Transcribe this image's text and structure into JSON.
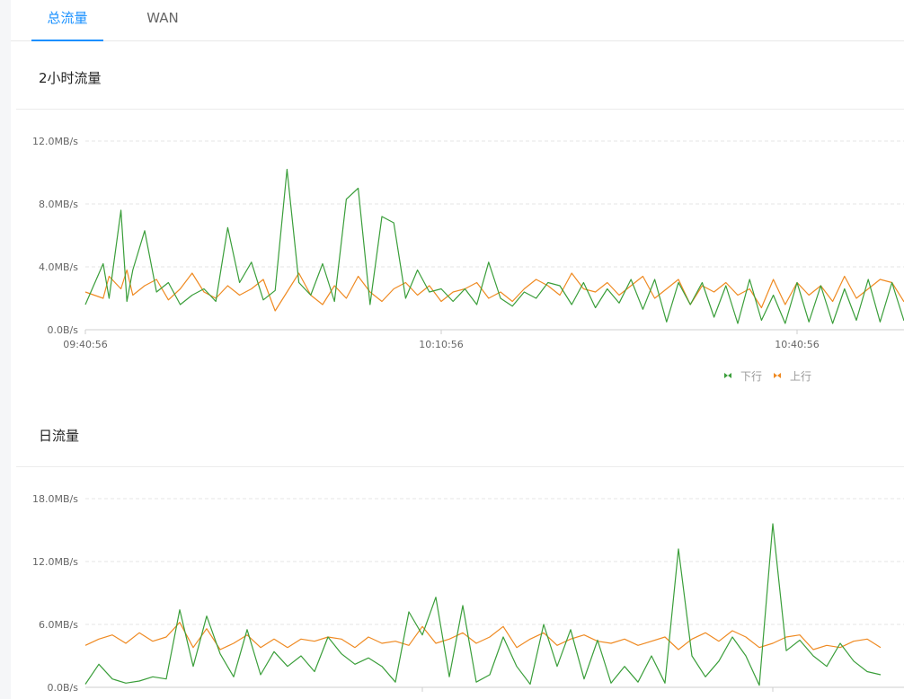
{
  "tabs": [
    {
      "label": "总流量",
      "active": true
    },
    {
      "label": "WAN",
      "active": false
    }
  ],
  "sections": [
    {
      "title": "2小时流量"
    },
    {
      "title": "日流量"
    }
  ],
  "legend": [
    {
      "label": "下行",
      "color": "#3a9e3a",
      "icon": "legend-arrows-icon"
    },
    {
      "label": "上行",
      "color": "#ef8a22",
      "icon": "legend-arrows-icon"
    }
  ],
  "chart_data": [
    {
      "type": "line",
      "title": "2小时流量",
      "y_ticks": [
        "0.0B/s",
        "4.0MB/s",
        "8.0MB/s",
        "12.0MB/s"
      ],
      "x_ticks": [
        "09:40:56",
        "10:10:56",
        "10:40:56"
      ],
      "ylim": [
        0,
        12
      ],
      "y_unit": "MB/s",
      "grid": true,
      "legend_position": "bottom-right",
      "x_minutes": [
        0,
        1.5,
        2,
        3,
        3.5,
        4,
        5,
        6,
        7,
        8,
        9,
        10,
        11,
        12,
        13,
        14,
        15,
        16,
        17,
        18,
        19,
        20,
        21,
        22,
        23,
        24,
        25,
        26,
        27,
        28,
        29,
        30,
        31,
        32,
        33,
        34,
        35,
        36,
        37,
        38,
        39,
        40,
        41,
        42,
        43,
        44,
        45,
        46,
        47,
        48,
        49,
        50,
        51,
        52,
        53,
        54,
        55,
        56,
        57,
        58,
        59,
        60,
        61,
        62,
        63,
        64,
        65,
        66,
        67,
        68,
        69,
        70
      ],
      "series": [
        {
          "name": "下行",
          "color": "#3a9e3a",
          "values": [
            1.6,
            4.2,
            2.0,
            7.6,
            1.8,
            3.8,
            6.3,
            2.4,
            3.0,
            1.6,
            2.2,
            2.6,
            1.8,
            6.5,
            3.0,
            4.3,
            1.9,
            2.5,
            10.2,
            3.0,
            2.2,
            4.2,
            1.8,
            8.3,
            9.0,
            1.6,
            7.2,
            6.8,
            2.0,
            3.8,
            2.4,
            2.6,
            1.8,
            2.6,
            1.6,
            4.3,
            2.0,
            1.5,
            2.4,
            2.0,
            3.0,
            2.8,
            1.6,
            3.0,
            1.4,
            2.6,
            1.7,
            3.2,
            1.3,
            3.2,
            0.5,
            3.0,
            1.6,
            3.0,
            0.8,
            2.8,
            0.4,
            3.2,
            0.6,
            2.2,
            0.4,
            3.0,
            0.5,
            2.8,
            0.4,
            2.6,
            0.6,
            3.2,
            0.5,
            3.0,
            0.6,
            1.0
          ]
        },
        {
          "name": "上行",
          "color": "#ef8a22",
          "values": [
            2.4,
            2.0,
            3.4,
            2.6,
            3.8,
            2.2,
            2.8,
            3.2,
            1.9,
            2.6,
            3.6,
            2.4,
            2.0,
            2.8,
            2.2,
            2.6,
            3.2,
            1.2,
            2.4,
            3.6,
            2.2,
            1.6,
            2.8,
            2.0,
            3.4,
            2.4,
            1.8,
            2.6,
            3.0,
            2.2,
            2.8,
            1.8,
            2.4,
            2.6,
            3.0,
            2.0,
            2.4,
            1.8,
            2.6,
            3.2,
            2.8,
            2.2,
            3.6,
            2.6,
            2.4,
            3.0,
            2.2,
            2.8,
            3.4,
            2.0,
            2.6,
            3.2,
            1.6,
            2.8,
            2.4,
            3.0,
            2.2,
            2.6,
            1.4,
            3.2,
            1.6,
            3.0,
            2.2,
            2.8,
            1.8,
            3.4,
            2.0,
            2.6,
            3.2,
            3.0,
            1.8,
            2.6
          ]
        }
      ]
    },
    {
      "type": "line",
      "title": "日流量",
      "y_ticks": [
        "0.0B/s",
        "6.0MB/s",
        "12.0MB/s",
        "18.0MB/s"
      ],
      "ylim": [
        0,
        18
      ],
      "y_unit": "MB/s",
      "grid": true,
      "x_hours": [
        0,
        0.5,
        1,
        1.5,
        2,
        2.5,
        3,
        3.5,
        4,
        4.5,
        5,
        5.5,
        6,
        6.5,
        7,
        7.5,
        8,
        8.5,
        9,
        9.5,
        10,
        10.5,
        11,
        11.5,
        12,
        12.5,
        13,
        13.5,
        14,
        14.5,
        15,
        15.5,
        16,
        16.5,
        17,
        17.5,
        18,
        18.5,
        19,
        19.5,
        20,
        20.5,
        21,
        21.5,
        22,
        22.5,
        23,
        23.5,
        24,
        24.5,
        25,
        25.5,
        26,
        26.5,
        27,
        27.5,
        28,
        28.5,
        29,
        29.5
      ],
      "series": [
        {
          "name": "下行",
          "color": "#3a9e3a",
          "values": [
            0.3,
            2.2,
            0.8,
            0.4,
            0.6,
            1.0,
            0.8,
            7.4,
            2.0,
            6.8,
            3.2,
            1.0,
            5.5,
            1.2,
            3.4,
            2.0,
            3.0,
            1.5,
            4.8,
            3.2,
            2.2,
            2.8,
            2.0,
            0.5,
            7.2,
            5.0,
            8.6,
            1.0,
            7.8,
            0.5,
            1.2,
            4.8,
            2.0,
            0.3,
            6.0,
            2.0,
            5.5,
            0.8,
            4.5,
            0.4,
            2.0,
            0.5,
            3.0,
            0.4,
            13.2,
            3.0,
            1.0,
            2.5,
            4.8,
            3.0,
            0.2,
            15.6,
            3.5,
            4.5,
            3.0,
            2.0,
            4.2,
            2.5,
            1.5,
            1.2
          ]
        },
        {
          "name": "上行",
          "color": "#ef8a22",
          "values": [
            4.0,
            4.6,
            5.0,
            4.2,
            5.2,
            4.4,
            4.8,
            6.2,
            3.8,
            5.6,
            3.6,
            4.2,
            5.0,
            3.8,
            4.6,
            3.8,
            4.6,
            4.4,
            4.8,
            4.6,
            3.8,
            4.8,
            4.2,
            4.4,
            4.0,
            5.8,
            4.2,
            4.6,
            5.2,
            4.2,
            4.8,
            5.8,
            3.8,
            4.6,
            5.2,
            4.0,
            4.6,
            5.0,
            4.4,
            4.2,
            4.6,
            4.0,
            4.4,
            4.8,
            3.6,
            4.6,
            5.2,
            4.4,
            5.4,
            4.8,
            3.8,
            4.2,
            4.8,
            5.0,
            3.6,
            4.0,
            3.8,
            4.4,
            4.6,
            3.8
          ]
        }
      ]
    }
  ]
}
